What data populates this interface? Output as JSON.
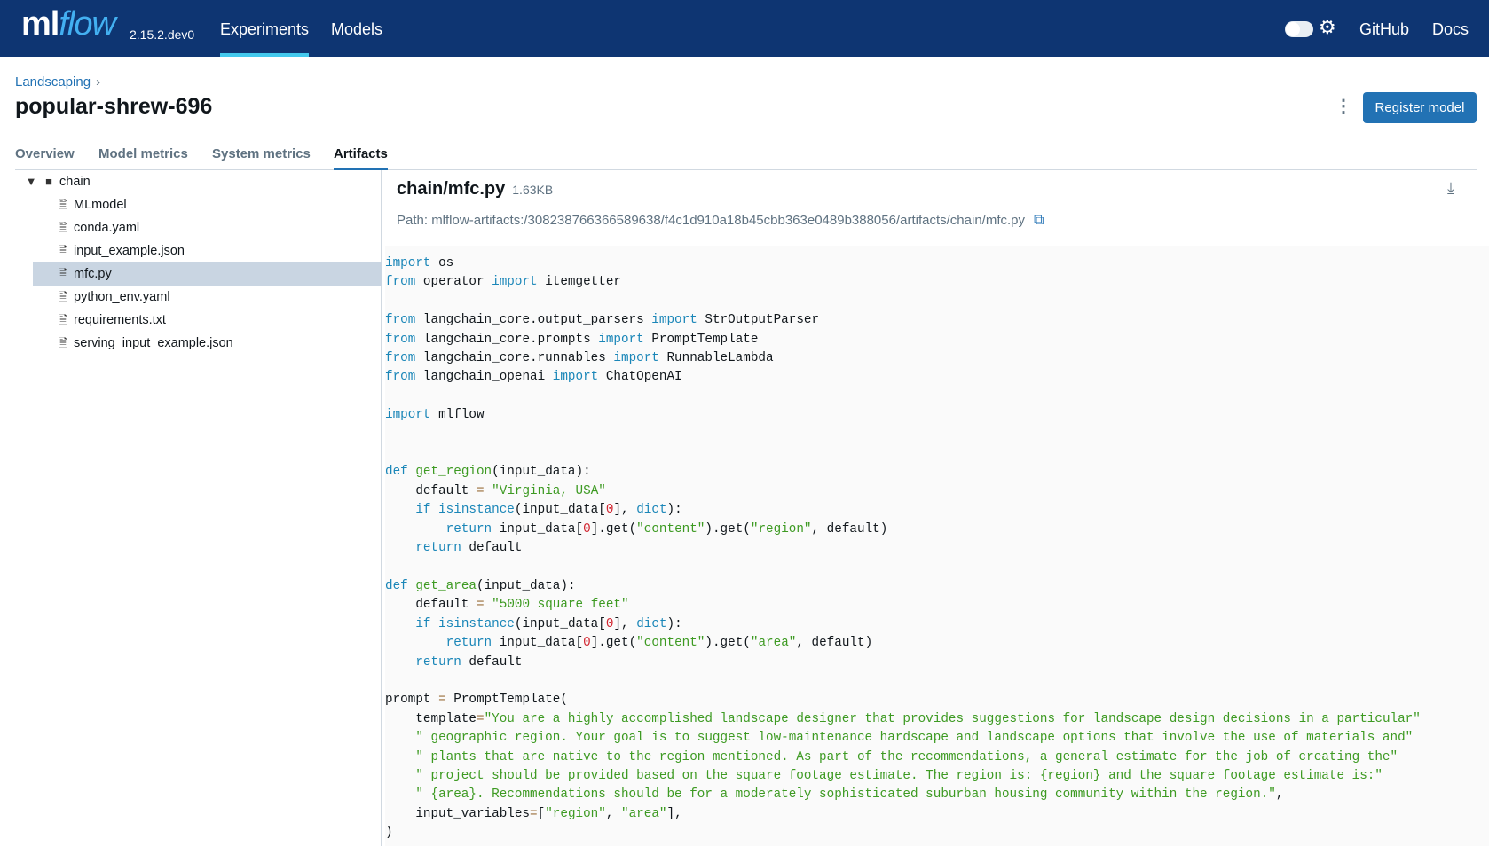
{
  "header": {
    "logo": "mlflow",
    "version": "2.15.2.dev0",
    "nav": [
      {
        "label": "Experiments",
        "active": true
      },
      {
        "label": "Models"
      }
    ],
    "github": "GitHub",
    "docs": "Docs",
    "theme_icon": "gear-icon"
  },
  "page": {
    "breadcrumb": "Landscaping",
    "title": "popular-shrew-696",
    "register_label": "Register model",
    "tabs": [
      "Overview",
      "Model metrics",
      "System metrics",
      "Artifacts"
    ],
    "active_tab": "Artifacts"
  },
  "tree": {
    "folder": "chain",
    "files": [
      "MLmodel",
      "conda.yaml",
      "input_example.json",
      "mfc.py",
      "python_env.yaml",
      "requirements.txt",
      "serving_input_example.json"
    ],
    "selected": "mfc.py"
  },
  "viewer": {
    "file_name": "chain/mfc.py",
    "file_size": "1.63KB",
    "path": "Path: mlflow-artifacts:/308238766366589638/f4c1d910a18b45cbb363e0489b388056/artifacts/chain/mfc.py"
  },
  "code": [
    [
      [
        "kw",
        "import"
      ],
      [
        "pl",
        " os"
      ]
    ],
    [
      [
        "kw",
        "from"
      ],
      [
        "pl",
        " operator "
      ],
      [
        "kw",
        "import"
      ],
      [
        "pl",
        " itemgetter"
      ]
    ],
    [],
    [
      [
        "kw",
        "from"
      ],
      [
        "pl",
        " langchain_core.output_parsers "
      ],
      [
        "kw",
        "import"
      ],
      [
        "pl",
        " StrOutputParser"
      ]
    ],
    [
      [
        "kw",
        "from"
      ],
      [
        "pl",
        " langchain_core.prompts "
      ],
      [
        "kw",
        "import"
      ],
      [
        "pl",
        " PromptTemplate"
      ]
    ],
    [
      [
        "kw",
        "from"
      ],
      [
        "pl",
        " langchain_core.runnables "
      ],
      [
        "kw",
        "import"
      ],
      [
        "pl",
        " RunnableLambda"
      ]
    ],
    [
      [
        "kw",
        "from"
      ],
      [
        "pl",
        " langchain_openai "
      ],
      [
        "kw",
        "import"
      ],
      [
        "pl",
        " ChatOpenAI"
      ]
    ],
    [],
    [
      [
        "kw",
        "import"
      ],
      [
        "pl",
        " mlflow"
      ]
    ],
    [],
    [],
    [
      [
        "kw",
        "def"
      ],
      [
        "pl",
        " "
      ],
      [
        "fn",
        "get_region"
      ],
      [
        "pl",
        "(input_data):"
      ]
    ],
    [
      [
        "pl",
        "    default "
      ],
      [
        "op",
        "="
      ],
      [
        "pl",
        " "
      ],
      [
        "str",
        "\"Virginia, USA\""
      ]
    ],
    [
      [
        "pl",
        "    "
      ],
      [
        "kw",
        "if"
      ],
      [
        "pl",
        " "
      ],
      [
        "kw",
        "isinstance"
      ],
      [
        "pl",
        "(input_data["
      ],
      [
        "num",
        "0"
      ],
      [
        "pl",
        "], "
      ],
      [
        "kw",
        "dict"
      ],
      [
        "pl",
        "):"
      ]
    ],
    [
      [
        "pl",
        "        "
      ],
      [
        "kw",
        "return"
      ],
      [
        "pl",
        " input_data["
      ],
      [
        "num",
        "0"
      ],
      [
        "pl",
        "].get("
      ],
      [
        "str",
        "\"content\""
      ],
      [
        "pl",
        ").get("
      ],
      [
        "str",
        "\"region\""
      ],
      [
        "pl",
        ", default)"
      ]
    ],
    [
      [
        "pl",
        "    "
      ],
      [
        "kw",
        "return"
      ],
      [
        "pl",
        " default"
      ]
    ],
    [],
    [
      [
        "kw",
        "def"
      ],
      [
        "pl",
        " "
      ],
      [
        "fn",
        "get_area"
      ],
      [
        "pl",
        "(input_data):"
      ]
    ],
    [
      [
        "pl",
        "    default "
      ],
      [
        "op",
        "="
      ],
      [
        "pl",
        " "
      ],
      [
        "str",
        "\"5000 square feet\""
      ]
    ],
    [
      [
        "pl",
        "    "
      ],
      [
        "kw",
        "if"
      ],
      [
        "pl",
        " "
      ],
      [
        "kw",
        "isinstance"
      ],
      [
        "pl",
        "(input_data["
      ],
      [
        "num",
        "0"
      ],
      [
        "pl",
        "], "
      ],
      [
        "kw",
        "dict"
      ],
      [
        "pl",
        "):"
      ]
    ],
    [
      [
        "pl",
        "        "
      ],
      [
        "kw",
        "return"
      ],
      [
        "pl",
        " input_data["
      ],
      [
        "num",
        "0"
      ],
      [
        "pl",
        "].get("
      ],
      [
        "str",
        "\"content\""
      ],
      [
        "pl",
        ").get("
      ],
      [
        "str",
        "\"area\""
      ],
      [
        "pl",
        ", default)"
      ]
    ],
    [
      [
        "pl",
        "    "
      ],
      [
        "kw",
        "return"
      ],
      [
        "pl",
        " default"
      ]
    ],
    [],
    [
      [
        "pl",
        "prompt "
      ],
      [
        "op",
        "="
      ],
      [
        "pl",
        " PromptTemplate("
      ]
    ],
    [
      [
        "pl",
        "    template"
      ],
      [
        "op",
        "="
      ],
      [
        "str",
        "\"You are a highly accomplished landscape designer that provides suggestions for landscape design decisions in a particular\""
      ]
    ],
    [
      [
        "pl",
        "    "
      ],
      [
        "str",
        "\" geographic region. Your goal is to suggest low-maintenance hardscape and landscape options that involve the use of materials and\""
      ]
    ],
    [
      [
        "pl",
        "    "
      ],
      [
        "str",
        "\" plants that are native to the region mentioned. As part of the recommendations, a general estimate for the job of creating the\""
      ]
    ],
    [
      [
        "pl",
        "    "
      ],
      [
        "str",
        "\" project should be provided based on the square footage estimate. The region is: {region} and the square footage estimate is:\""
      ]
    ],
    [
      [
        "pl",
        "    "
      ],
      [
        "str",
        "\" {area}. Recommendations should be for a moderately sophisticated suburban housing community within the region.\""
      ],
      [
        "pl",
        ","
      ]
    ],
    [
      [
        "pl",
        "    input_variables"
      ],
      [
        "op",
        "="
      ],
      [
        "pl",
        "["
      ],
      [
        "str",
        "\"region\""
      ],
      [
        "pl",
        ", "
      ],
      [
        "str",
        "\"area\""
      ],
      [
        "pl",
        "],"
      ]
    ],
    [
      [
        "pl",
        ")"
      ]
    ]
  ]
}
